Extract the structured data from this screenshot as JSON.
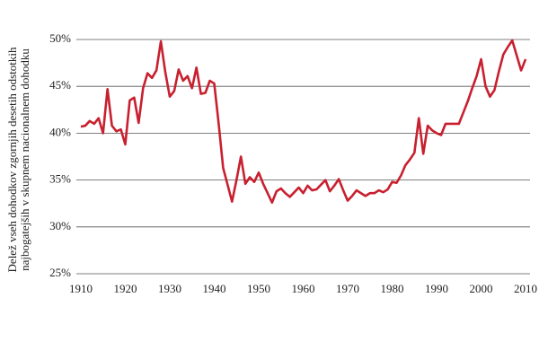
{
  "chart_data": {
    "type": "line",
    "y_label": [
      "Delež vseh dohodkov zgornjih desetih odstotkih",
      "najbogatejših v skupnem nacionalnem dohodku"
    ],
    "x": [
      1910,
      1911,
      1912,
      1913,
      1914,
      1915,
      1916,
      1917,
      1918,
      1919,
      1920,
      1921,
      1922,
      1923,
      1924,
      1925,
      1926,
      1927,
      1928,
      1929,
      1930,
      1931,
      1932,
      1933,
      1934,
      1935,
      1936,
      1937,
      1938,
      1939,
      1940,
      1941,
      1942,
      1943,
      1944,
      1945,
      1946,
      1947,
      1948,
      1949,
      1950,
      1951,
      1952,
      1953,
      1954,
      1955,
      1956,
      1957,
      1958,
      1959,
      1960,
      1961,
      1962,
      1963,
      1964,
      1965,
      1966,
      1967,
      1968,
      1969,
      1970,
      1971,
      1972,
      1973,
      1974,
      1975,
      1976,
      1977,
      1978,
      1979,
      1980,
      1981,
      1982,
      1983,
      1984,
      1985,
      1986,
      1987,
      1988,
      1989,
      1990,
      1991,
      1992,
      1993,
      1994,
      1995,
      1996,
      1997,
      1998,
      1999,
      2000,
      2001,
      2002,
      2003,
      2004,
      2005,
      2006,
      2007,
      2008,
      2009,
      2010
    ],
    "series": [
      {
        "color": "#c8202f",
        "values": [
          40.7,
          40.8,
          41.3,
          41.0,
          41.6,
          40.0,
          44.7,
          40.8,
          40.2,
          40.4,
          38.8,
          43.5,
          43.8,
          41.1,
          44.8,
          46.4,
          45.9,
          46.7,
          49.8,
          46.5,
          43.9,
          44.5,
          46.8,
          45.6,
          46.1,
          44.8,
          47.0,
          44.2,
          44.3,
          45.6,
          45.3,
          41.0,
          36.3,
          34.5,
          32.7,
          35.0,
          37.5,
          34.6,
          35.3,
          34.8,
          35.8,
          34.6,
          33.6,
          32.6,
          33.8,
          34.1,
          33.6,
          33.2,
          33.7,
          34.2,
          33.6,
          34.4,
          33.9,
          34.0,
          34.5,
          35.0,
          33.8,
          34.4,
          35.1,
          33.9,
          32.8,
          33.3,
          33.9,
          33.6,
          33.3,
          33.6,
          33.6,
          33.9,
          33.7,
          34.0,
          34.8,
          34.7,
          35.5,
          36.6,
          37.2,
          37.9,
          41.6,
          37.8,
          40.8,
          40.3,
          40.0,
          39.8,
          41.0,
          41.0,
          41.0,
          41.0,
          42.2,
          43.4,
          44.8,
          46.1,
          47.9,
          45.0,
          43.9,
          44.6,
          46.6,
          48.4,
          49.2,
          49.9,
          48.3,
          46.7,
          47.9
        ]
      }
    ],
    "xlim": [
      1909,
      2011
    ],
    "xticks": [
      1910,
      1920,
      1930,
      1940,
      1950,
      1960,
      1970,
      1980,
      1990,
      2000,
      2010
    ],
    "ylim": [
      25,
      50
    ],
    "yticks": [
      {
        "value": 25,
        "label": "25%"
      },
      {
        "value": 30,
        "label": "30%"
      },
      {
        "value": 35,
        "label": "35%"
      },
      {
        "value": 40,
        "label": "40%"
      },
      {
        "value": 45,
        "label": "45%"
      },
      {
        "value": 50,
        "label": "50%"
      }
    ],
    "grid": true
  }
}
